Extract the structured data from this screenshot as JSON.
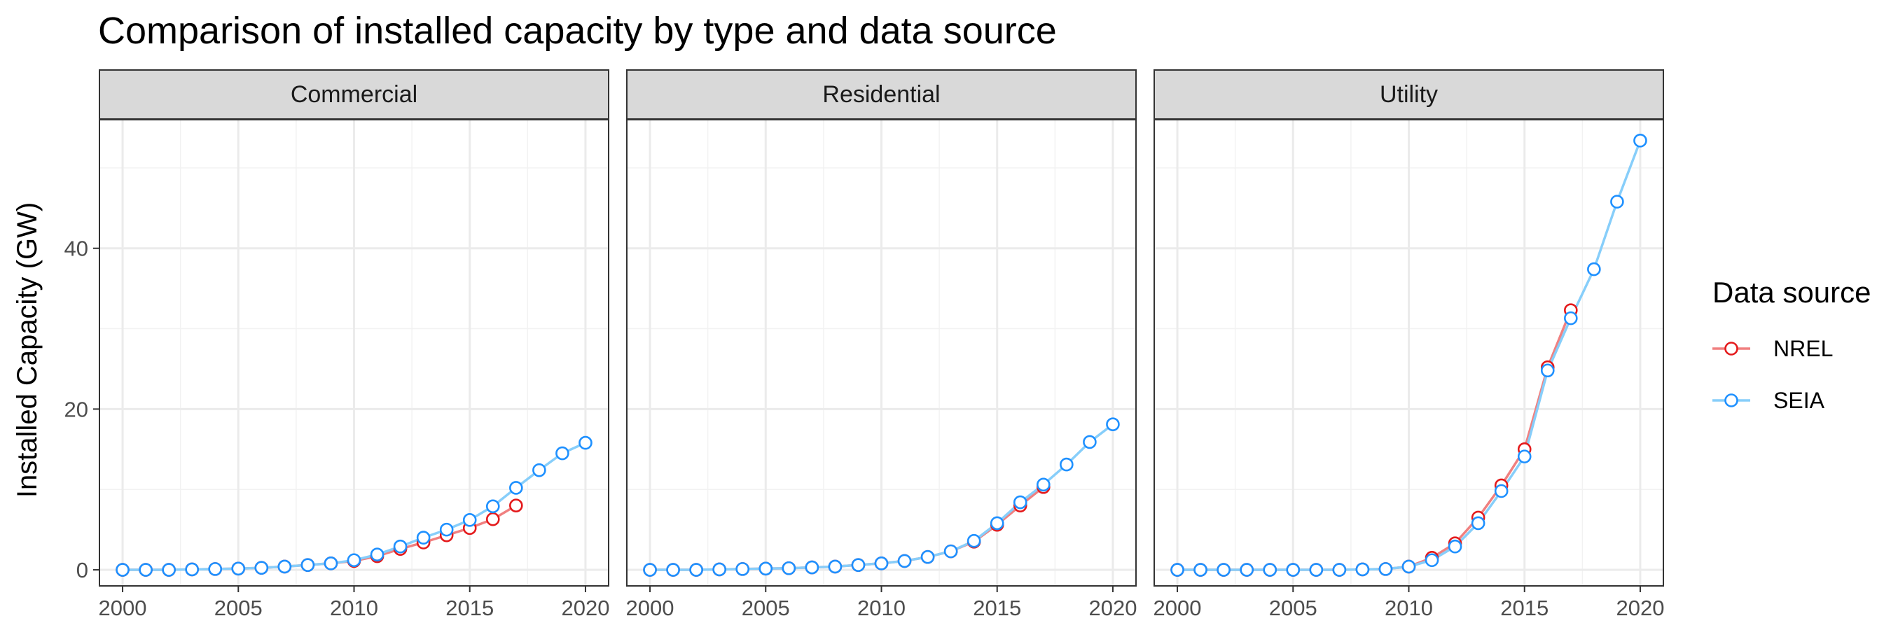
{
  "chart_data": {
    "type": "line",
    "title": "Comparison of installed capacity by type and data source",
    "xlabel": "",
    "ylabel": "Installed Capacity (GW)",
    "xlim": [
      2000,
      2020
    ],
    "ylim": [
      -2,
      56
    ],
    "x_ticks": [
      2000,
      2005,
      2010,
      2015,
      2020
    ],
    "y_ticks": [
      0,
      20,
      40
    ],
    "grid": true,
    "legend": {
      "title": "Data source",
      "placement": "right",
      "entries": [
        {
          "name": "NREL",
          "color": "#E41A1C",
          "line_color": "#F08080"
        },
        {
          "name": "SEIA",
          "color": "#1E90FF",
          "line_color": "#87CEFA"
        }
      ]
    },
    "panels": [
      {
        "label": "Commercial",
        "series": [
          {
            "name": "NREL",
            "x": [
              2000,
              2001,
              2002,
              2003,
              2004,
              2005,
              2006,
              2007,
              2008,
              2009,
              2010,
              2011,
              2012,
              2013,
              2014,
              2015,
              2016,
              2017
            ],
            "y": [
              0,
              0,
              0,
              0.05,
              0.1,
              0.15,
              0.25,
              0.4,
              0.6,
              0.8,
              1.1,
              1.7,
              2.6,
              3.4,
              4.3,
              5.2,
              6.3,
              8.0
            ]
          },
          {
            "name": "SEIA",
            "x": [
              2000,
              2001,
              2002,
              2003,
              2004,
              2005,
              2006,
              2007,
              2008,
              2009,
              2010,
              2011,
              2012,
              2013,
              2014,
              2015,
              2016,
              2017,
              2018,
              2019,
              2020
            ],
            "y": [
              0,
              0,
              0,
              0.05,
              0.1,
              0.15,
              0.25,
              0.4,
              0.6,
              0.8,
              1.2,
              1.9,
              2.9,
              4.0,
              5.0,
              6.2,
              7.9,
              10.2,
              12.4,
              14.5,
              15.8
            ]
          }
        ]
      },
      {
        "label": "Residential",
        "series": [
          {
            "name": "NREL",
            "x": [
              2000,
              2001,
              2002,
              2003,
              2004,
              2005,
              2006,
              2007,
              2008,
              2009,
              2010,
              2011,
              2012,
              2013,
              2014,
              2015,
              2016,
              2017
            ],
            "y": [
              0,
              0,
              0,
              0.05,
              0.1,
              0.15,
              0.2,
              0.3,
              0.4,
              0.6,
              0.8,
              1.1,
              1.6,
              2.3,
              3.5,
              5.6,
              8.0,
              10.3
            ]
          },
          {
            "name": "SEIA",
            "x": [
              2000,
              2001,
              2002,
              2003,
              2004,
              2005,
              2006,
              2007,
              2008,
              2009,
              2010,
              2011,
              2012,
              2013,
              2014,
              2015,
              2016,
              2017,
              2018,
              2019,
              2020
            ],
            "y": [
              0,
              0,
              0,
              0.05,
              0.1,
              0.15,
              0.2,
              0.3,
              0.4,
              0.6,
              0.8,
              1.1,
              1.6,
              2.3,
              3.6,
              5.8,
              8.4,
              10.6,
              13.1,
              15.9,
              18.1
            ]
          }
        ]
      },
      {
        "label": "Utility",
        "series": [
          {
            "name": "NREL",
            "x": [
              2000,
              2001,
              2002,
              2003,
              2004,
              2005,
              2006,
              2007,
              2008,
              2009,
              2010,
              2011,
              2012,
              2013,
              2014,
              2015,
              2016,
              2017
            ],
            "y": [
              0,
              0,
              0,
              0,
              0,
              0,
              0,
              0,
              0.05,
              0.1,
              0.4,
              1.5,
              3.3,
              6.5,
              10.5,
              15.0,
              25.2,
              32.3
            ]
          },
          {
            "name": "SEIA",
            "x": [
              2000,
              2001,
              2002,
              2003,
              2004,
              2005,
              2006,
              2007,
              2008,
              2009,
              2010,
              2011,
              2012,
              2013,
              2014,
              2015,
              2016,
              2017,
              2018,
              2019,
              2020
            ],
            "y": [
              0,
              0,
              0,
              0,
              0,
              0,
              0,
              0,
              0.05,
              0.1,
              0.4,
              1.2,
              2.9,
              5.8,
              9.8,
              14.1,
              24.8,
              31.3,
              37.4,
              45.8,
              53.4
            ]
          }
        ]
      }
    ]
  }
}
